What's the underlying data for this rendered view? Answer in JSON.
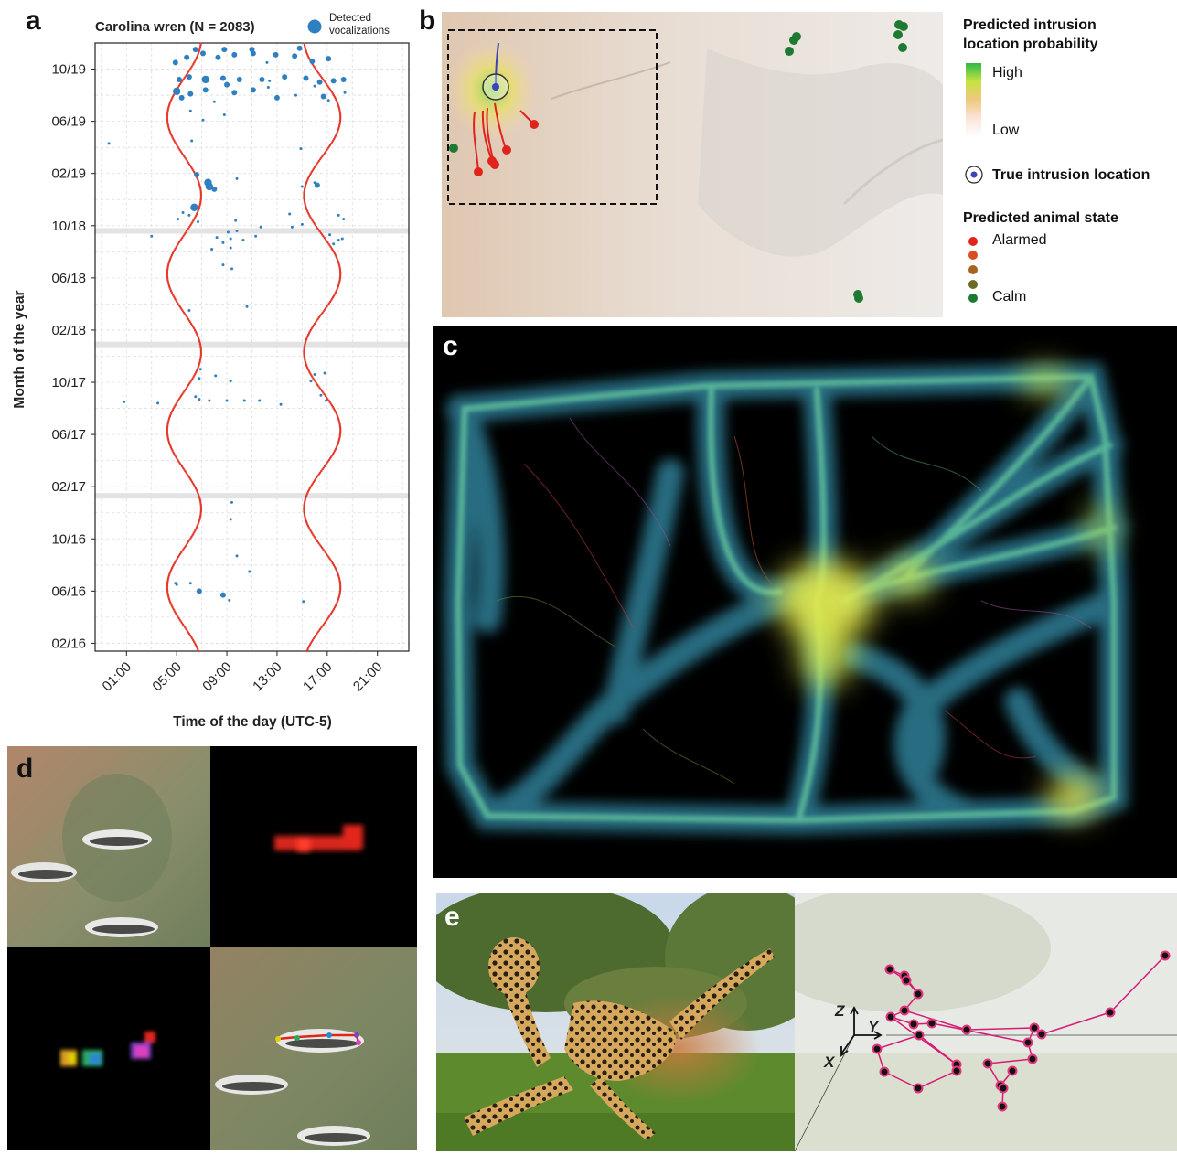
{
  "panel_a": {
    "letter": "a",
    "title": "Carolina wren (N = 2083)",
    "legend_label": "Detected vocalizations",
    "colors": {
      "detections": "#2f7fc1",
      "daylight_line": "#e5372a"
    },
    "chart_data": {
      "type": "scatter",
      "title": "Carolina wren (N = 2083)",
      "xlabel": "Time of the day (UTC-5)",
      "ylabel": "Month of the year",
      "x_ticks": [
        "01:00",
        "05:00",
        "09:00",
        "13:00",
        "17:00",
        "21:00"
      ],
      "y_ticks": [
        "02/16",
        "06/16",
        "10/16",
        "02/17",
        "06/17",
        "10/17",
        "02/18",
        "06/18",
        "10/18",
        "02/19",
        "06/19",
        "10/19"
      ],
      "x_range_hours": [
        -1.5,
        23.5
      ],
      "y_range_months": [
        -0.6,
        46.0
      ],
      "grid": true,
      "legend": "top-right",
      "gaps_months": [
        11.3,
        22.9,
        31.6
      ],
      "series": [
        {
          "name": "Detected vocalizations",
          "points": [
            [
              6.8,
              4.0,
              3
            ],
            [
              6.1,
              4.6,
              2
            ],
            [
              8.7,
              3.7,
              3
            ],
            [
              9.2,
              3.3,
              2
            ],
            [
              10.8,
              5.5,
              2
            ],
            [
              9.8,
              6.7,
              2
            ],
            [
              5.0,
              4.5,
              2
            ],
            [
              4.9,
              4.6,
              2
            ],
            [
              15.1,
              3.2,
              2
            ],
            [
              9.3,
              9.5,
              2
            ],
            [
              9.4,
              10.8,
              2
            ],
            [
              3.5,
              18.4,
              2
            ],
            [
              0.8,
              18.5,
              2
            ],
            [
              6.8,
              18.7,
              2
            ],
            [
              6.5,
              18.9,
              2
            ],
            [
              7.6,
              18.6,
              2
            ],
            [
              9.0,
              18.6,
              2
            ],
            [
              10.4,
              18.6,
              2
            ],
            [
              11.6,
              18.6,
              2
            ],
            [
              13.3,
              18.3,
              2
            ],
            [
              16.9,
              18.6,
              2
            ],
            [
              16.5,
              19.0,
              2
            ],
            [
              15.7,
              20.1,
              2
            ],
            [
              9.3,
              20.1,
              2
            ],
            [
              8.1,
              20.5,
              2
            ],
            [
              6.8,
              20.3,
              2
            ],
            [
              6.9,
              21.0,
              2
            ],
            [
              16.0,
              20.6,
              2
            ],
            [
              16.8,
              20.7,
              2
            ],
            [
              10.6,
              25.8,
              2
            ],
            [
              6.0,
              25.5,
              2
            ],
            [
              3.0,
              31.2,
              2
            ],
            [
              7.8,
              30.2,
              2
            ],
            [
              8.7,
              30.7,
              2
            ],
            [
              8.2,
              31.1,
              2
            ],
            [
              9.1,
              31.5,
              2
            ],
            [
              9.3,
              31.0,
              2
            ],
            [
              9.8,
              31.6,
              2
            ],
            [
              11.3,
              31.2,
              2
            ],
            [
              11.7,
              31.9,
              2
            ],
            [
              10.3,
              30.9,
              2
            ],
            [
              5.1,
              32.5,
              2
            ],
            [
              6.7,
              32.3,
              2
            ],
            [
              6.0,
              32.8,
              2
            ],
            [
              9.7,
              32.4,
              2
            ],
            [
              5.5,
              33.0,
              2
            ],
            [
              14.0,
              32.9,
              2
            ],
            [
              14.2,
              31.9,
              2
            ],
            [
              15.0,
              32.1,
              2
            ],
            [
              17.2,
              31.3,
              2
            ],
            [
              17.5,
              30.6,
              2
            ],
            [
              17.9,
              30.9,
              2
            ],
            [
              18.3,
              32.5,
              2
            ],
            [
              17.9,
              32.8,
              2
            ],
            [
              18.2,
              31.0,
              2
            ],
            [
              8.7,
              29.0,
              2
            ],
            [
              9.4,
              28.7,
              2
            ],
            [
              9.3,
              30.3,
              2
            ],
            [
              6.4,
              33.4,
              4
            ],
            [
              7.5,
              35.3,
              4
            ],
            [
              7.6,
              35.0,
              4
            ],
            [
              6.6,
              35.9,
              3
            ],
            [
              8.0,
              34.8,
              3
            ],
            [
              9.8,
              35.6,
              2
            ],
            [
              6.2,
              38.5,
              2
            ],
            [
              14.9,
              37.9,
              2
            ],
            [
              16.2,
              35.1,
              3
            ],
            [
              16.0,
              35.3,
              2
            ],
            [
              -0.4,
              38.3,
              2
            ],
            [
              15.0,
              35.0,
              2
            ],
            [
              8.8,
              40.5,
              2
            ],
            [
              7.1,
              40.1,
              2
            ],
            [
              6.1,
              40.8,
              2
            ],
            [
              8.0,
              41.5,
              2
            ],
            [
              9.6,
              42.2,
              3
            ],
            [
              11.1,
              42.4,
              3
            ],
            [
              13.0,
              41.8,
              3
            ],
            [
              14.5,
              42.0,
              2
            ],
            [
              16.7,
              41.9,
              3
            ],
            [
              17.1,
              41.6,
              2
            ],
            [
              18.4,
              42.2,
              2
            ],
            [
              16.0,
              42.7,
              2
            ],
            [
              12.3,
              42.6,
              2
            ],
            [
              9.0,
              42.8,
              3
            ],
            [
              7.3,
              42.4,
              3
            ],
            [
              6.1,
              42.1,
              3
            ],
            [
              5.4,
              41.8,
              3
            ],
            [
              5.0,
              42.3,
              4
            ],
            [
              5.2,
              43.2,
              3
            ],
            [
              6.0,
              43.4,
              3
            ],
            [
              7.3,
              43.2,
              4
            ],
            [
              8.7,
              43.3,
              3
            ],
            [
              10.0,
              43.2,
              3
            ],
            [
              11.8,
              43.2,
              3
            ],
            [
              13.6,
              43.4,
              3
            ],
            [
              15.3,
              43.3,
              3
            ],
            [
              16.4,
              43.0,
              3
            ],
            [
              17.5,
              43.1,
              3
            ],
            [
              18.3,
              43.2,
              3
            ],
            [
              12.4,
              43.1,
              2
            ],
            [
              4.9,
              44.5,
              3
            ],
            [
              5.8,
              44.9,
              3
            ],
            [
              7.1,
              45.2,
              3
            ],
            [
              8.3,
              44.9,
              3
            ],
            [
              9.6,
              45.1,
              3
            ],
            [
              11.1,
              45.2,
              3
            ],
            [
              12.9,
              45.1,
              3
            ],
            [
              14.4,
              45.0,
              3
            ],
            [
              15.8,
              44.6,
              3
            ],
            [
              17.1,
              44.8,
              3
            ],
            [
              12.2,
              44.5,
              2
            ],
            [
              6.5,
              45.5,
              3
            ],
            [
              11.0,
              45.5,
              3
            ],
            [
              14.8,
              45.6,
              3
            ],
            [
              8.8,
              45.5,
              3
            ]
          ]
        },
        {
          "name": "Sunrise / sunset",
          "sunrise_amp_hours": 1.35,
          "sunrise_mean_hours": 5.6,
          "sunset_amp_hours": 1.45,
          "sunset_mean_hours": 16.6,
          "phase_june_month": 4.3
        }
      ]
    }
  },
  "panel_b": {
    "letter": "b",
    "legend_prob_title": "Predicted intrusion location probability",
    "legend_high": "High",
    "legend_low": "Low",
    "legend_true_loc": "True intrusion location",
    "legend_state_title": "Predicted animal state",
    "legend_alarmed": "Alarmed",
    "legend_calm": "Calm",
    "colors": {
      "alarmed": "#e0241b",
      "calm": "#1e7a33",
      "mid1": "#d94e20",
      "mid2": "#a5641f",
      "mid3": "#6b6b25",
      "true_loc": "#3b45b8"
    }
  },
  "panel_c": {
    "letter": "c"
  },
  "panel_d": {
    "letter": "d"
  },
  "panel_e": {
    "letter": "e",
    "axis_z": "Z",
    "axis_y": "Y",
    "axis_x": "X"
  }
}
